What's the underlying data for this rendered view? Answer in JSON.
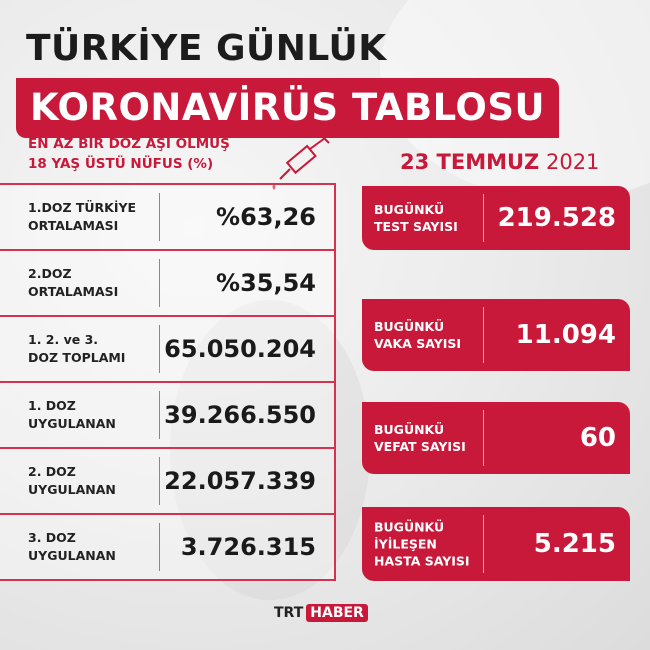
{
  "title": {
    "line1": "TÜRKİYE GÜNLÜK",
    "line2": "KORONAVİRÜS TABLOSU"
  },
  "subtitle": {
    "line1": "EN AZ BİR DOZ AŞI OLMUŞ",
    "line2": "18 YAŞ ÜSTÜ NÜFUS (%)"
  },
  "date": {
    "day_month": "23 TEMMUZ",
    "year": "2021"
  },
  "vaccine_table": [
    {
      "label1": "1.DOZ TÜRKİYE",
      "label2": "ORTALAMASI",
      "value": "%63,26"
    },
    {
      "label1": "2.DOZ",
      "label2": "ORTALAMASI",
      "value": "%35,54"
    },
    {
      "label1": "1. 2. ve 3.",
      "label2": "DOZ TOPLAMI",
      "value": "65.050.204"
    },
    {
      "label1": "1. DOZ",
      "label2": "UYGULANAN",
      "value": "39.266.550"
    },
    {
      "label1": "2. DOZ",
      "label2": "UYGULANAN",
      "value": "22.057.339"
    },
    {
      "label1": "3. DOZ",
      "label2": "UYGULANAN",
      "value": "3.726.315"
    }
  ],
  "daily_cards": [
    {
      "label1": "BUGÜNKÜ",
      "label2": "TEST SAYISI",
      "label3": "",
      "value": "219.528"
    },
    {
      "label1": "BUGÜNKÜ",
      "label2": "VAKA SAYISI",
      "label3": "",
      "value": "11.094"
    },
    {
      "label1": "BUGÜNKÜ",
      "label2": "VEFAT SAYISI",
      "label3": "",
      "value": "60"
    },
    {
      "label1": "BUGÜNKÜ",
      "label2": "İYİLEŞEN",
      "label3": "HASTA SAYISI",
      "value": "5.215"
    }
  ],
  "logo": {
    "part1": "TRT",
    "part2": "HABER"
  },
  "colors": {
    "accent": "#c8193a",
    "text": "#1c1c1c"
  },
  "icons": [
    "syringe-icon"
  ]
}
